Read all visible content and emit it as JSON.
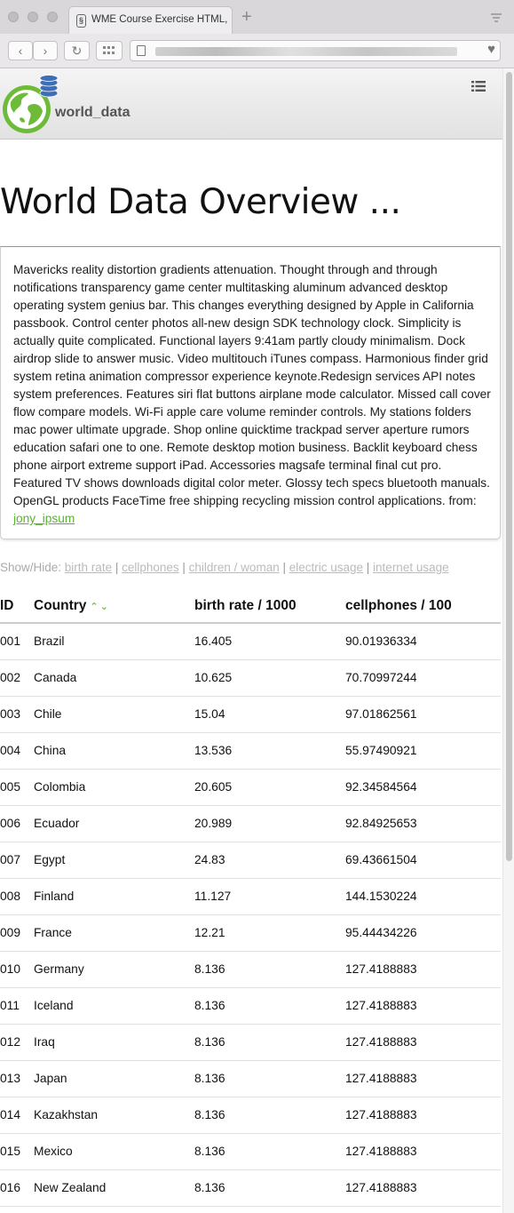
{
  "browser": {
    "tab_title": "WME Course Exercise HTML, C",
    "favicon_glyph": "§",
    "new_tab_glyph": "+",
    "back_glyph": "‹",
    "forward_glyph": "›",
    "reload_glyph": "↻",
    "icons": [
      "back-icon",
      "forward-icon",
      "reload-icon",
      "grid-icon",
      "document-icon",
      "heart-icon",
      "tab-list-icon"
    ]
  },
  "header": {
    "brand": "world_data",
    "accent_color": "#6ebb3a"
  },
  "page_title": "World Data Overview ...",
  "intro": {
    "text": "Mavericks reality distortion gradients attenuation. Thought through and through notifications transparency game center multitasking aluminum advanced desktop operating system genius bar. This changes everything designed by Apple in California passbook. Control center photos all-new design SDK technology clock. Simplicity is actually quite complicated. Functional layers 9:41am partly cloudy minimalism. Dock airdrop slide to answer music. Video multitouch iTunes compass. Harmonious finder grid system retina animation compressor experience keynote.Redesign services API notes system preferences. Features siri flat buttons airplane mode calculator. Missed call cover flow compare models. Wi-Fi apple care volume reminder controls. My stations folders mac power ultimate upgrade. Shop online quicktime trackpad server aperture rumors education safari one to one. Remote desktop motion business. Backlit keyboard chess phone airport extreme support iPad. Accessories magsafe terminal final cut pro. Featured TV shows downloads digital color meter. Glossy tech specs bluetooth manuals. OpenGL products FaceTime free shipping recycling mission control applications. from: ",
    "link_text": "jony_ipsum"
  },
  "show_hide": {
    "label": "Show/Hide: ",
    "separator": " | ",
    "links": [
      "birth rate",
      "cellphones",
      "children / woman",
      "electric usage",
      "internet usage"
    ]
  },
  "table": {
    "columns": [
      "ID",
      "Country",
      "birth rate / 1000",
      "cellphones / 100"
    ],
    "sort_glyphs": "⌃⌄",
    "rows": [
      [
        "001",
        "Brazil",
        "16.405",
        "90.01936334"
      ],
      [
        "002",
        "Canada",
        "10.625",
        "70.70997244"
      ],
      [
        "003",
        "Chile",
        "15.04",
        "97.01862561"
      ],
      [
        "004",
        "China",
        "13.536",
        "55.97490921"
      ],
      [
        "005",
        "Colombia",
        "20.605",
        "92.34584564"
      ],
      [
        "006",
        "Ecuador",
        "20.989",
        "92.84925653"
      ],
      [
        "007",
        "Egypt",
        "24.83",
        "69.43661504"
      ],
      [
        "008",
        "Finland",
        "11.127",
        "144.1530224"
      ],
      [
        "009",
        "France",
        "12.21",
        "95.44434226"
      ],
      [
        "010",
        "Germany",
        "8.136",
        "127.4188883"
      ],
      [
        "011",
        "Iceland",
        "8.136",
        "127.4188883"
      ],
      [
        "012",
        "Iraq",
        "8.136",
        "127.4188883"
      ],
      [
        "013",
        "Japan",
        "8.136",
        "127.4188883"
      ],
      [
        "014",
        "Kazakhstan",
        "8.136",
        "127.4188883"
      ],
      [
        "015",
        "Mexico",
        "8.136",
        "127.4188883"
      ],
      [
        "016",
        "New Zealand",
        "8.136",
        "127.4188883"
      ]
    ]
  }
}
